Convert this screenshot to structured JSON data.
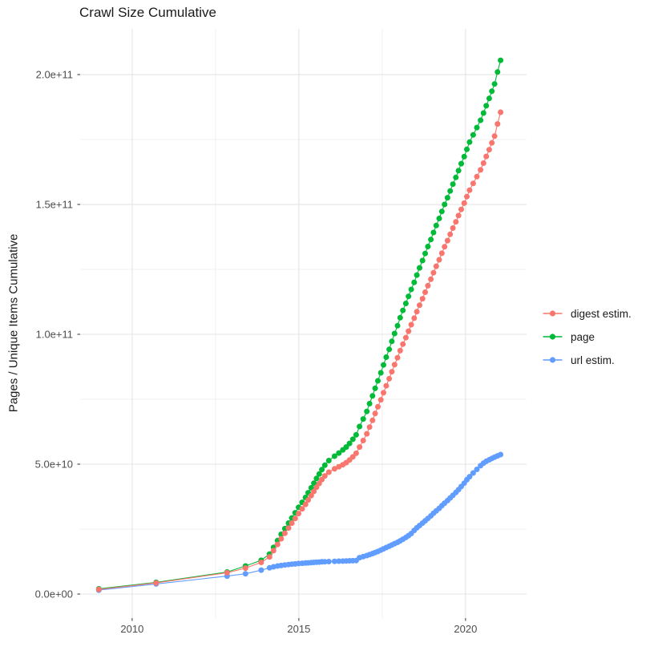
{
  "title": "Crawl Size Cumulative",
  "chart_data": {
    "type": "line",
    "title": "Crawl Size Cumulative",
    "xlabel": "",
    "ylabel": "Pages / Unique Items Cumulative",
    "legend_position": "right",
    "grid": true,
    "value_unit": "billions (1e9)",
    "axes": {
      "xlim": [
        2008.44,
        2021.83
      ],
      "ylim_e9": [
        -9.26,
        217.6
      ],
      "x_ticks": [
        {
          "v": 2010,
          "label": "2010"
        },
        {
          "v": 2015,
          "label": "2015"
        },
        {
          "v": 2020,
          "label": "2020"
        }
      ],
      "x_minor_ticks": [
        2012.5,
        2017.5
      ],
      "y_ticks": [
        {
          "v": 0,
          "label": "0.0e+00"
        },
        {
          "v": 50,
          "label": "5.0e+10"
        },
        {
          "v": 100,
          "label": "1.0e+11"
        },
        {
          "v": 150,
          "label": "1.5e+11"
        },
        {
          "v": 200,
          "label": "2.0e+11"
        }
      ],
      "y_minor_ticks": [
        25,
        75,
        125,
        175
      ]
    },
    "years": [
      2009.0,
      2010.72,
      2012.85,
      2013.4,
      2013.87,
      2014.12,
      2014.24,
      2014.36,
      2014.47,
      2014.58,
      2014.69,
      2014.79,
      2014.89,
      2014.99,
      2015.1,
      2015.2,
      2015.28,
      2015.37,
      2015.45,
      2015.53,
      2015.61,
      2015.69,
      2015.78,
      2015.9,
      2016.07,
      2016.2,
      2016.32,
      2016.42,
      2016.52,
      2016.62,
      2016.72,
      2016.82,
      2016.93,
      2017.04,
      2017.12,
      2017.21,
      2017.29,
      2017.37,
      2017.46,
      2017.54,
      2017.62,
      2017.71,
      2017.79,
      2017.87,
      2017.96,
      2018.04,
      2018.12,
      2018.21,
      2018.29,
      2018.37,
      2018.46,
      2018.54,
      2018.62,
      2018.71,
      2018.79,
      2018.87,
      2018.96,
      2019.04,
      2019.12,
      2019.21,
      2019.29,
      2019.37,
      2019.46,
      2019.54,
      2019.62,
      2019.71,
      2019.79,
      2019.87,
      2019.96,
      2020.04,
      2020.12,
      2020.23,
      2020.34,
      2020.45,
      2020.54,
      2020.62,
      2020.71,
      2020.79,
      2020.87,
      2020.96,
      2021.05
    ],
    "series": [
      {
        "name": "digest estim.",
        "color": "#F8766D",
        "values_e9": [
          1.8,
          4.3,
          8.2,
          10.0,
          12.2,
          14.3,
          16.7,
          19.1,
          21.3,
          23.4,
          25.4,
          27.3,
          29.1,
          31.0,
          32.8,
          34.5,
          36.2,
          37.9,
          39.5,
          41.1,
          42.6,
          44.1,
          45.5,
          46.9,
          48.2,
          49.0,
          49.8,
          50.6,
          51.6,
          52.8,
          54.2,
          56.6,
          59.1,
          61.7,
          64.3,
          66.9,
          69.5,
          72.1,
          74.8,
          77.5,
          80.2,
          82.9,
          85.6,
          88.3,
          91.0,
          93.7,
          96.2,
          98.7,
          101.2,
          103.7,
          106.2,
          108.7,
          111.2,
          113.7,
          116.2,
          118.7,
          121.2,
          123.7,
          126.2,
          128.7,
          131.2,
          133.7,
          136.1,
          138.5,
          140.9,
          143.3,
          145.7,
          148.1,
          150.5,
          153.0,
          155.5,
          158.1,
          160.7,
          163.3,
          165.9,
          168.5,
          171.1,
          173.7,
          176.3,
          181.0,
          185.5
        ]
      },
      {
        "name": "page",
        "color": "#00BA38",
        "values_e9": [
          2.0,
          4.5,
          8.5,
          10.8,
          13.0,
          15.4,
          18.0,
          20.6,
          23.0,
          25.2,
          27.3,
          29.3,
          31.3,
          33.4,
          35.3,
          37.2,
          39.0,
          40.9,
          42.7,
          44.5,
          46.2,
          47.9,
          49.6,
          51.4,
          53.1,
          54.3,
          55.5,
          56.6,
          58.0,
          59.6,
          61.3,
          64.5,
          67.4,
          70.3,
          73.3,
          76.3,
          79.2,
          82.1,
          85.2,
          88.2,
          91.2,
          94.2,
          97.3,
          100.3,
          103.3,
          106.4,
          109.2,
          111.9,
          114.6,
          117.3,
          120.0,
          122.8,
          125.6,
          128.4,
          131.1,
          133.8,
          136.5,
          139.2,
          141.9,
          144.6,
          147.3,
          150.0,
          152.6,
          155.2,
          157.8,
          160.4,
          163.0,
          165.7,
          168.4,
          171.2,
          174.0,
          176.8,
          179.6,
          182.4,
          185.2,
          188.0,
          190.8,
          193.6,
          196.4,
          201.0,
          205.5
        ]
      },
      {
        "name": "url estim.",
        "color": "#619CFF",
        "values_e9": [
          1.5,
          3.9,
          6.9,
          7.8,
          9.2,
          10.1,
          10.5,
          10.8,
          11.0,
          11.2,
          11.35,
          11.5,
          11.6,
          11.75,
          11.85,
          11.95,
          12.0,
          12.1,
          12.2,
          12.25,
          12.3,
          12.4,
          12.45,
          12.5,
          12.6,
          12.65,
          12.7,
          12.75,
          12.8,
          12.85,
          12.9,
          14.0,
          14.4,
          14.8,
          15.2,
          15.6,
          16.0,
          16.4,
          16.9,
          17.4,
          17.9,
          18.4,
          18.9,
          19.4,
          19.9,
          20.5,
          21.1,
          21.8,
          22.5,
          23.3,
          24.5,
          25.5,
          26.4,
          27.3,
          28.2,
          29.1,
          30.1,
          31.1,
          32.0,
          33.0,
          34.0,
          35.0,
          36.0,
          37.0,
          38.0,
          39.1,
          40.2,
          41.4,
          42.7,
          44.0,
          45.2,
          46.6,
          48.0,
          49.4,
          50.4,
          51.1,
          51.7,
          52.2,
          52.7,
          53.2,
          53.7
        ]
      }
    ],
    "style": {
      "grid_major_color": "#E4E4E4",
      "grid_minor_color": "#F0F0F0",
      "tick_mark_color": "#333333",
      "point_radius": 3.5,
      "line_width": 1.1
    }
  }
}
